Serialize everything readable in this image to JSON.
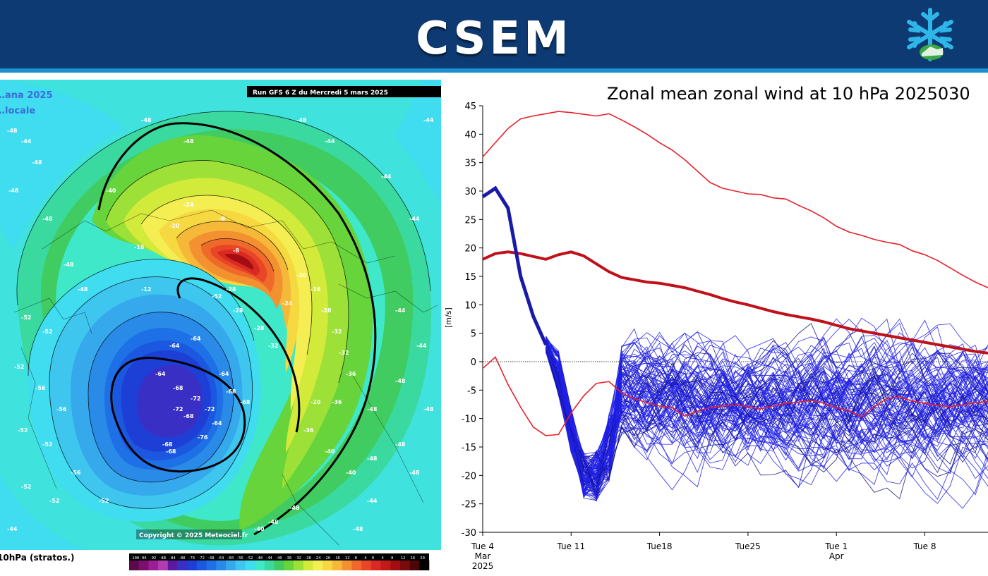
{
  "header": {
    "brand": "CSEM",
    "logo_icon": "snowflake-mountain-logo"
  },
  "map": {
    "run_label": "Run GFS 6 Z du Mercredi 5 mars 2025",
    "side_label_1": "…ana 2025",
    "side_label_2": "…locale",
    "footer_label": "10hPa (stratos.)",
    "copyright": "Copyright © 2025 Meteociel.fr",
    "colorbar_labels": [
      "-100",
      "-96",
      "-92",
      "-88",
      "-84",
      "-80",
      "-76",
      "-72",
      "-68",
      "-64",
      "-60",
      "-56",
      "-52",
      "-48",
      "-44",
      "-40",
      "-36",
      "-32",
      "-28",
      "-24",
      "-20",
      "-16",
      "-12",
      "-8",
      "-4",
      "0",
      "4",
      "8",
      "12",
      "16",
      "20"
    ],
    "colorbar_colors": [
      "#5a0a4a",
      "#7a0f6e",
      "#9b1e94",
      "#b03cb0",
      "#5a1aa0",
      "#3a2fc4",
      "#1e3fd6",
      "#1c57e0",
      "#1e70e6",
      "#2a8ae8",
      "#36a8ec",
      "#3ec6ef",
      "#40dcef",
      "#3ee8c8",
      "#3ad9a0",
      "#40cc60",
      "#66d43a",
      "#9ce038",
      "#d2ea3a",
      "#f4ee52",
      "#f6d840",
      "#f5b838",
      "#f39030",
      "#ef6a2a",
      "#e84626",
      "#d82a22",
      "#c11a1a",
      "#a40e12",
      "#7a0a0c",
      "#4c0606",
      "#000000"
    ],
    "value_labels": [
      "-48",
      "-44",
      "-52",
      "-56",
      "-64",
      "-68",
      "-72",
      "-76",
      "-40",
      "-36",
      "-32",
      "-28",
      "-24",
      "-20",
      "-16",
      "-12",
      "-8"
    ]
  },
  "chart_data": {
    "type": "line",
    "title": "Zonal mean zonal wind at 10 hPa 2025030",
    "ylabel": "[m/s]",
    "ylim": [
      -30,
      45
    ],
    "yticks": [
      45,
      40,
      35,
      30,
      25,
      20,
      15,
      10,
      5,
      0,
      -5,
      -10,
      -15,
      -20,
      -25,
      -30
    ],
    "xlim_days": [
      0,
      40
    ],
    "xticks": [
      {
        "day": 0,
        "label": "Tue 4",
        "sub1": "Mar",
        "sub2": "2025"
      },
      {
        "day": 7,
        "label": "Tue 11",
        "sub1": "",
        "sub2": ""
      },
      {
        "day": 14,
        "label": "Tue18",
        "sub1": "",
        "sub2": ""
      },
      {
        "day": 21,
        "label": "Tue25",
        "sub1": "",
        "sub2": ""
      },
      {
        "day": 28,
        "label": "Tue 1",
        "sub1": "Apr",
        "sub2": ""
      },
      {
        "day": 35,
        "label": "Tue 8",
        "sub1": "",
        "sub2": ""
      }
    ],
    "climatology": {
      "x": [
        0,
        1,
        2,
        3,
        4,
        5,
        6,
        7,
        8,
        9,
        10,
        11,
        12,
        13,
        14,
        15,
        16,
        17,
        18,
        19,
        20,
        21,
        22,
        23,
        24,
        25,
        26,
        27,
        28,
        29,
        30,
        31,
        32,
        33,
        34,
        35,
        36,
        37,
        38,
        39,
        40
      ],
      "max": [
        36,
        38.5,
        41,
        42.7,
        43.2,
        43.6,
        44,
        43.8,
        43.5,
        43.2,
        43.6,
        42.5,
        41.3,
        40,
        38.5,
        37.2,
        35.5,
        33.5,
        31.5,
        30.5,
        30,
        29.5,
        29.4,
        28.8,
        28.6,
        27.5,
        26.5,
        25.3,
        23.8,
        22.8,
        22.2,
        21.5,
        21,
        20.6,
        19.5,
        18.8,
        17.8,
        16.5,
        15.2,
        14,
        13
      ],
      "mean": [
        18,
        19,
        19.3,
        19,
        18.5,
        18,
        18.8,
        19.3,
        18.6,
        17.2,
        15.8,
        14.8,
        14.4,
        14,
        13.8,
        13.4,
        13,
        12.4,
        11.8,
        11.1,
        10.5,
        10,
        9.4,
        8.8,
        8.3,
        7.9,
        7.5,
        7,
        6.4,
        5.8,
        5.4,
        5,
        4.6,
        4.2,
        3.8,
        3.4,
        3,
        2.6,
        2.2,
        1.8,
        1.5
      ],
      "min": [
        -1.2,
        0.8,
        -4,
        -8,
        -11.5,
        -13,
        -12.8,
        -9,
        -6,
        -3.8,
        -3.5,
        -5.5,
        -6.5,
        -7.2,
        -7.8,
        -8.1,
        -9.6,
        -8.7,
        -8.0,
        -7.8,
        -7.6,
        -7.9,
        -8.3,
        -7.8,
        -7.3,
        -7.1,
        -6.8,
        -7.3,
        -8.1,
        -8.6,
        -9.7,
        -7.9,
        -6.5,
        -6.2,
        -6.9,
        -7.3,
        -7.7,
        -7.9,
        -7.6,
        -7.2,
        -7.0
      ],
      "color": "#e8202a",
      "mean_color": "#c0101a"
    },
    "observed": {
      "x": [
        0,
        1,
        2,
        3,
        4,
        5
      ],
      "values": [
        29,
        30.5,
        27,
        15,
        8,
        3
      ],
      "color": "#1a1aa8"
    },
    "ensemble": {
      "members": 100,
      "forecast_start_day": 3,
      "color": "#2020e8"
    },
    "zero_line": true,
    "grid": false
  }
}
